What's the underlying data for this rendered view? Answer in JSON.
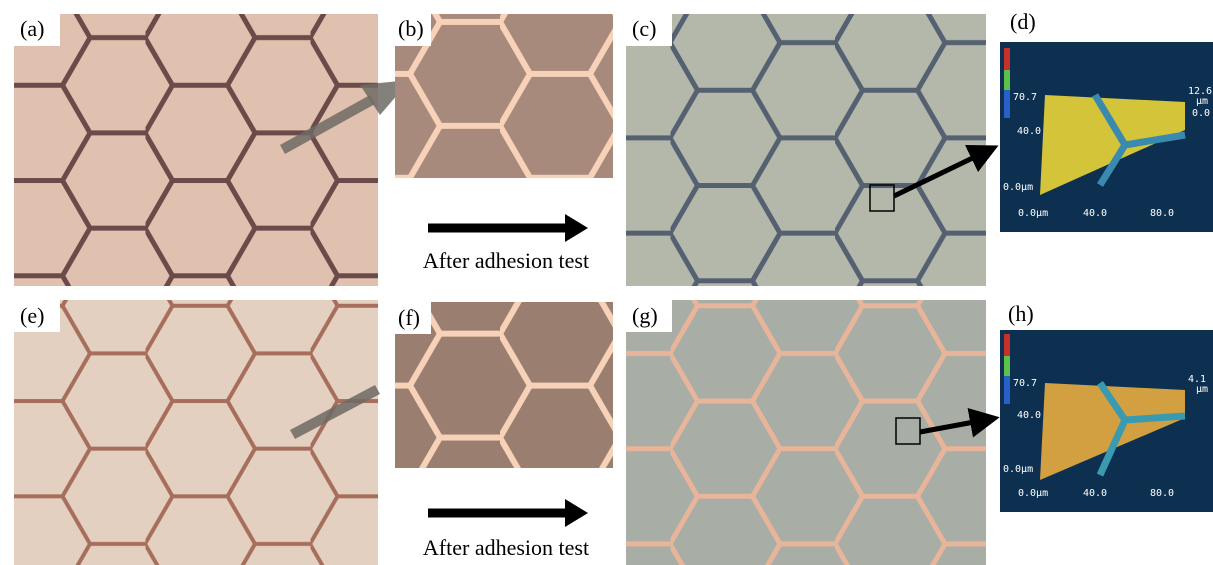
{
  "panels": [
    {
      "label": "(a)"
    },
    {
      "label": "(b)"
    },
    {
      "label": "(c)"
    },
    {
      "label": "(d)"
    },
    {
      "label": "(e)"
    },
    {
      "label": "(f)"
    },
    {
      "label": "(g)"
    },
    {
      "label": "(h)"
    }
  ],
  "captions": [
    "After adhesion test",
    "After adhesion test"
  ],
  "profiles": [
    {
      "z_max": "12.6",
      "z_unit": "µm",
      "z_min": "0.0",
      "y_max": "70.7",
      "y_mid": "40.0",
      "y_origin": "0.0µm",
      "x_start": "0.0µm",
      "x_mid": "40.0",
      "x_max": "80.0"
    },
    {
      "z_max": "4.1",
      "z_unit": "µm",
      "y_max": "70.7",
      "y_mid": "40.0",
      "y_origin": "0.0µm",
      "x_start": "0.0µm",
      "x_mid": "40.0",
      "x_max": "80.0"
    }
  ]
}
